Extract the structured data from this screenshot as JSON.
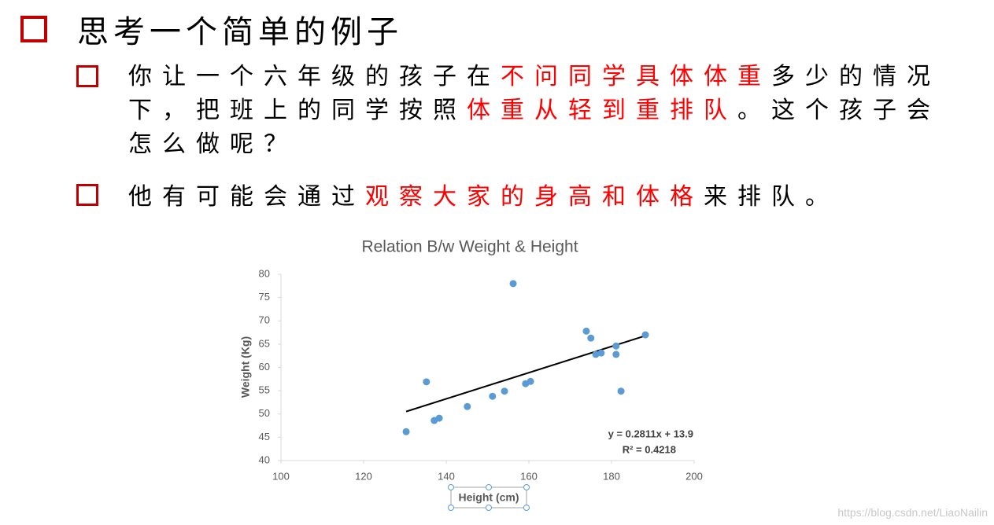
{
  "title": "思考一个简单的例子",
  "highlight_color": "#ff0000",
  "bullets": [
    {
      "segments": [
        {
          "text": "你让一个六年级的孩子在",
          "highlight": false
        },
        {
          "text": "不问同学具体体重",
          "highlight": true
        },
        {
          "text": "多少的情况下，把班上的同学按照",
          "highlight": false
        },
        {
          "text": "体重从轻到重排队",
          "highlight": true
        },
        {
          "text": "。这个孩子会怎么做呢？",
          "highlight": false
        }
      ]
    },
    {
      "segments": [
        {
          "text": "他有可能会通过",
          "highlight": false
        },
        {
          "text": "观察大家的身高和体格",
          "highlight": true
        },
        {
          "text": "来排队。",
          "highlight": false
        }
      ]
    }
  ],
  "watermark": "https://blog.csdn.net/LiaoNailin",
  "chart_data": {
    "type": "scatter",
    "title": "Relation B/w Weight & Height",
    "x_label": "Height (cm)",
    "y_label": "Weight (Kg)",
    "color": "#5b9bd5",
    "x": [
      130.3,
      135.2,
      137.1,
      138.3,
      145.1,
      151.2,
      154.1,
      156.2,
      159.2,
      160.4,
      173.9,
      175.0,
      176.2,
      177.5,
      181.1,
      181.1,
      182.3,
      188.2
    ],
    "values": [
      46.2,
      56.9,
      48.6,
      49.1,
      51.6,
      53.8,
      54.9,
      78.0,
      56.5,
      57.0,
      67.8,
      66.3,
      62.8,
      63.1,
      64.6,
      62.8,
      54.9,
      67.0
    ],
    "xlim": [
      100,
      200
    ],
    "xticks": [
      100,
      120,
      140,
      160,
      180,
      200
    ],
    "ylim": [
      40,
      80
    ],
    "yticks": [
      40,
      45,
      50,
      55,
      60,
      65,
      70,
      75,
      80
    ],
    "trendline": {
      "slope": 0.2811,
      "intercept": 13.9,
      "color": "#000000",
      "equation": "y = 0.2811x + 13.9",
      "r2": "R² = 0.4218"
    }
  }
}
